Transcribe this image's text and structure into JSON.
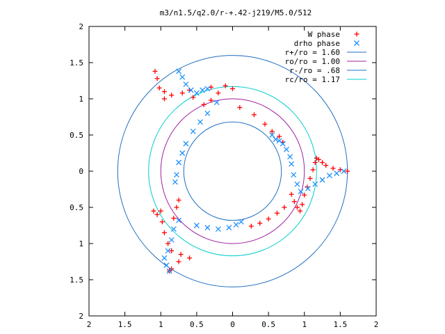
{
  "chart_data": {
    "type": "scatter",
    "title": "m3/n1.5/q2.0/r-+.42-j219/M5.0/512",
    "xlim": [
      -2,
      2
    ],
    "ylim": [
      -2,
      2
    ],
    "xticks": [
      -2,
      -1.5,
      -1,
      -0.5,
      0,
      0.5,
      1,
      1.5,
      2
    ],
    "yticks": [
      -2,
      -1.5,
      -1,
      -0.5,
      0,
      0.5,
      1,
      1.5,
      2
    ],
    "xtick_labels": [
      "2",
      "1.5",
      "1",
      "0.5",
      "0",
      "0.5",
      "1",
      "1.5",
      "2"
    ],
    "ytick_labels": [
      "2",
      "1.5",
      "1",
      "0.5",
      "0",
      "0.5",
      "1",
      "1.5",
      "2"
    ],
    "grid": false,
    "legend_position": "top-right",
    "colors": {
      "w_phase": "#ff0000",
      "drho_phase": "#1e90ff",
      "r_plus": "#1f6fc0",
      "ro": "#a020a0",
      "r_minus": "#1f6fc0",
      "rc": "#00cccc"
    },
    "legend": [
      {
        "label": "W phase",
        "kind": "plus",
        "color": "#ff0000"
      },
      {
        "label": "drho phase",
        "kind": "cross",
        "color": "#1e90ff"
      },
      {
        "label": "r+/ro = 1.60",
        "kind": "line",
        "color": "#1f6fc0"
      },
      {
        "label": "ro/ro = 1.00",
        "kind": "line",
        "color": "#a020a0"
      },
      {
        "label": "r-/ro = .68",
        "kind": "line",
        "color": "#1f6fc0"
      },
      {
        "label": "rc/ro = 1.17",
        "kind": "line",
        "color": "#00cccc"
      }
    ],
    "circles": [
      {
        "name": "r+/ro",
        "r": 1.6,
        "color": "#1f6fc0"
      },
      {
        "name": "ro/ro",
        "r": 1.0,
        "color": "#a020a0"
      },
      {
        "name": "r-/ro",
        "r": 0.68,
        "color": "#1f6fc0"
      },
      {
        "name": "rc/ro",
        "r": 1.17,
        "color": "#00cccc"
      }
    ],
    "series": [
      {
        "name": "W phase",
        "marker": "plus",
        "color": "#ff0000",
        "points": [
          [
            1.6,
            0.0
          ],
          [
            1.5,
            0.02
          ],
          [
            1.4,
            0.04
          ],
          [
            1.3,
            0.08
          ],
          [
            1.25,
            0.12
          ],
          [
            1.2,
            0.16
          ],
          [
            1.17,
            0.18
          ],
          [
            1.15,
            0.12
          ],
          [
            1.12,
            0.02
          ],
          [
            1.08,
            -0.1
          ],
          [
            1.04,
            -0.22
          ],
          [
            1.0,
            -0.33
          ],
          [
            0.97,
            -0.46
          ],
          [
            0.94,
            -0.55
          ],
          [
            0.9,
            -0.5
          ],
          [
            0.86,
            -0.42
          ],
          [
            0.82,
            -0.32
          ],
          [
            0.72,
            -0.5
          ],
          [
            0.62,
            -0.58
          ],
          [
            0.5,
            -0.66
          ],
          [
            0.38,
            -0.72
          ],
          [
            0.26,
            -0.76
          ],
          [
            -0.2,
            1.08
          ],
          [
            -0.3,
            0.98
          ],
          [
            -0.4,
            0.92
          ],
          [
            -0.55,
            1.02
          ],
          [
            -0.7,
            1.08
          ],
          [
            -0.85,
            1.05
          ],
          [
            -0.95,
            1.0
          ],
          [
            -1.02,
            1.15
          ],
          [
            -1.05,
            1.28
          ],
          [
            -1.08,
            1.38
          ],
          [
            -0.95,
            1.1
          ],
          [
            -0.6,
            1.12
          ],
          [
            -0.3,
            1.16
          ],
          [
            -0.1,
            1.18
          ],
          [
            0.0,
            1.14
          ],
          [
            0.1,
            0.88
          ],
          [
            0.3,
            0.78
          ],
          [
            0.45,
            0.65
          ],
          [
            0.55,
            0.55
          ],
          [
            0.65,
            0.48
          ],
          [
            0.7,
            0.4
          ],
          [
            -1.0,
            -0.55
          ],
          [
            -1.1,
            -0.55
          ],
          [
            -1.05,
            -0.6
          ],
          [
            -0.98,
            -0.7
          ],
          [
            -0.95,
            -0.85
          ],
          [
            -0.9,
            -1.0
          ],
          [
            -0.85,
            -1.1
          ],
          [
            -0.72,
            -1.15
          ],
          [
            -0.6,
            -1.2
          ],
          [
            -0.75,
            -1.25
          ],
          [
            -0.85,
            -1.35
          ],
          [
            -0.88,
            -1.38
          ],
          [
            -0.82,
            -0.65
          ],
          [
            -0.78,
            -0.5
          ],
          [
            -0.75,
            -0.4
          ]
        ]
      },
      {
        "name": "drho phase",
        "marker": "cross",
        "color": "#1e90ff",
        "points": [
          [
            -0.75,
            1.38
          ],
          [
            -0.7,
            1.3
          ],
          [
            -0.65,
            1.2
          ],
          [
            -0.58,
            1.12
          ],
          [
            -0.5,
            1.08
          ],
          [
            -0.42,
            1.12
          ],
          [
            -0.35,
            1.14
          ],
          [
            -0.22,
            0.95
          ],
          [
            -0.35,
            0.8
          ],
          [
            -0.45,
            0.68
          ],
          [
            -0.55,
            0.55
          ],
          [
            -0.65,
            0.38
          ],
          [
            -0.7,
            0.25
          ],
          [
            -0.75,
            0.12
          ],
          [
            -0.78,
            -0.05
          ],
          [
            -0.8,
            -0.15
          ],
          [
            0.55,
            0.5
          ],
          [
            0.6,
            0.44
          ],
          [
            0.65,
            0.42
          ],
          [
            0.7,
            0.38
          ],
          [
            0.75,
            0.3
          ],
          [
            0.8,
            0.2
          ],
          [
            0.82,
            0.1
          ],
          [
            0.85,
            -0.05
          ],
          [
            0.9,
            -0.18
          ],
          [
            0.95,
            -0.28
          ],
          [
            1.05,
            -0.24
          ],
          [
            1.15,
            -0.18
          ],
          [
            1.25,
            -0.12
          ],
          [
            1.35,
            -0.06
          ],
          [
            1.45,
            -0.03
          ],
          [
            1.55,
            0.0
          ],
          [
            0.12,
            -0.7
          ],
          [
            0.05,
            -0.74
          ],
          [
            -0.05,
            -0.78
          ],
          [
            -0.2,
            -0.8
          ],
          [
            -0.35,
            -0.78
          ],
          [
            -0.5,
            -0.75
          ],
          [
            -0.75,
            -0.68
          ],
          [
            -0.82,
            -0.8
          ],
          [
            -0.85,
            -0.95
          ],
          [
            -0.9,
            -1.1
          ],
          [
            -0.95,
            -1.2
          ],
          [
            -0.92,
            -1.3
          ],
          [
            -0.88,
            -1.38
          ]
        ]
      }
    ]
  }
}
